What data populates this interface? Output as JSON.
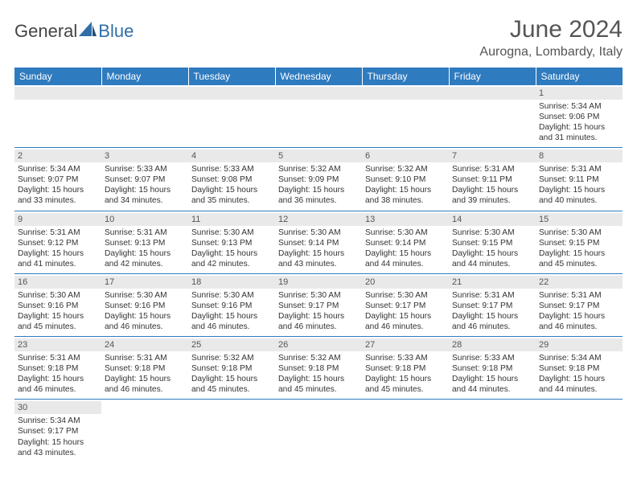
{
  "logo": {
    "part1": "General",
    "part2": "Blue"
  },
  "title": "June 2024",
  "location": "Aurogna, Lombardy, Italy",
  "colors": {
    "header_bg": "#2f7bbf",
    "header_text": "#ffffff",
    "daynum_bg": "#e9e9e9",
    "border": "#2f7bbf",
    "logo_accent": "#2f6ea8"
  },
  "day_headers": [
    "Sunday",
    "Monday",
    "Tuesday",
    "Wednesday",
    "Thursday",
    "Friday",
    "Saturday"
  ],
  "weeks": [
    [
      {
        "blank": true
      },
      {
        "blank": true
      },
      {
        "blank": true
      },
      {
        "blank": true
      },
      {
        "blank": true
      },
      {
        "blank": true
      },
      {
        "n": "1",
        "sunrise": "Sunrise: 5:34 AM",
        "sunset": "Sunset: 9:06 PM",
        "d1": "Daylight: 15 hours",
        "d2": "and 31 minutes."
      }
    ],
    [
      {
        "n": "2",
        "sunrise": "Sunrise: 5:34 AM",
        "sunset": "Sunset: 9:07 PM",
        "d1": "Daylight: 15 hours",
        "d2": "and 33 minutes."
      },
      {
        "n": "3",
        "sunrise": "Sunrise: 5:33 AM",
        "sunset": "Sunset: 9:07 PM",
        "d1": "Daylight: 15 hours",
        "d2": "and 34 minutes."
      },
      {
        "n": "4",
        "sunrise": "Sunrise: 5:33 AM",
        "sunset": "Sunset: 9:08 PM",
        "d1": "Daylight: 15 hours",
        "d2": "and 35 minutes."
      },
      {
        "n": "5",
        "sunrise": "Sunrise: 5:32 AM",
        "sunset": "Sunset: 9:09 PM",
        "d1": "Daylight: 15 hours",
        "d2": "and 36 minutes."
      },
      {
        "n": "6",
        "sunrise": "Sunrise: 5:32 AM",
        "sunset": "Sunset: 9:10 PM",
        "d1": "Daylight: 15 hours",
        "d2": "and 38 minutes."
      },
      {
        "n": "7",
        "sunrise": "Sunrise: 5:31 AM",
        "sunset": "Sunset: 9:11 PM",
        "d1": "Daylight: 15 hours",
        "d2": "and 39 minutes."
      },
      {
        "n": "8",
        "sunrise": "Sunrise: 5:31 AM",
        "sunset": "Sunset: 9:11 PM",
        "d1": "Daylight: 15 hours",
        "d2": "and 40 minutes."
      }
    ],
    [
      {
        "n": "9",
        "sunrise": "Sunrise: 5:31 AM",
        "sunset": "Sunset: 9:12 PM",
        "d1": "Daylight: 15 hours",
        "d2": "and 41 minutes."
      },
      {
        "n": "10",
        "sunrise": "Sunrise: 5:31 AM",
        "sunset": "Sunset: 9:13 PM",
        "d1": "Daylight: 15 hours",
        "d2": "and 42 minutes."
      },
      {
        "n": "11",
        "sunrise": "Sunrise: 5:30 AM",
        "sunset": "Sunset: 9:13 PM",
        "d1": "Daylight: 15 hours",
        "d2": "and 42 minutes."
      },
      {
        "n": "12",
        "sunrise": "Sunrise: 5:30 AM",
        "sunset": "Sunset: 9:14 PM",
        "d1": "Daylight: 15 hours",
        "d2": "and 43 minutes."
      },
      {
        "n": "13",
        "sunrise": "Sunrise: 5:30 AM",
        "sunset": "Sunset: 9:14 PM",
        "d1": "Daylight: 15 hours",
        "d2": "and 44 minutes."
      },
      {
        "n": "14",
        "sunrise": "Sunrise: 5:30 AM",
        "sunset": "Sunset: 9:15 PM",
        "d1": "Daylight: 15 hours",
        "d2": "and 44 minutes."
      },
      {
        "n": "15",
        "sunrise": "Sunrise: 5:30 AM",
        "sunset": "Sunset: 9:15 PM",
        "d1": "Daylight: 15 hours",
        "d2": "and 45 minutes."
      }
    ],
    [
      {
        "n": "16",
        "sunrise": "Sunrise: 5:30 AM",
        "sunset": "Sunset: 9:16 PM",
        "d1": "Daylight: 15 hours",
        "d2": "and 45 minutes."
      },
      {
        "n": "17",
        "sunrise": "Sunrise: 5:30 AM",
        "sunset": "Sunset: 9:16 PM",
        "d1": "Daylight: 15 hours",
        "d2": "and 46 minutes."
      },
      {
        "n": "18",
        "sunrise": "Sunrise: 5:30 AM",
        "sunset": "Sunset: 9:16 PM",
        "d1": "Daylight: 15 hours",
        "d2": "and 46 minutes."
      },
      {
        "n": "19",
        "sunrise": "Sunrise: 5:30 AM",
        "sunset": "Sunset: 9:17 PM",
        "d1": "Daylight: 15 hours",
        "d2": "and 46 minutes."
      },
      {
        "n": "20",
        "sunrise": "Sunrise: 5:30 AM",
        "sunset": "Sunset: 9:17 PM",
        "d1": "Daylight: 15 hours",
        "d2": "and 46 minutes."
      },
      {
        "n": "21",
        "sunrise": "Sunrise: 5:31 AM",
        "sunset": "Sunset: 9:17 PM",
        "d1": "Daylight: 15 hours",
        "d2": "and 46 minutes."
      },
      {
        "n": "22",
        "sunrise": "Sunrise: 5:31 AM",
        "sunset": "Sunset: 9:17 PM",
        "d1": "Daylight: 15 hours",
        "d2": "and 46 minutes."
      }
    ],
    [
      {
        "n": "23",
        "sunrise": "Sunrise: 5:31 AM",
        "sunset": "Sunset: 9:18 PM",
        "d1": "Daylight: 15 hours",
        "d2": "and 46 minutes."
      },
      {
        "n": "24",
        "sunrise": "Sunrise: 5:31 AM",
        "sunset": "Sunset: 9:18 PM",
        "d1": "Daylight: 15 hours",
        "d2": "and 46 minutes."
      },
      {
        "n": "25",
        "sunrise": "Sunrise: 5:32 AM",
        "sunset": "Sunset: 9:18 PM",
        "d1": "Daylight: 15 hours",
        "d2": "and 45 minutes."
      },
      {
        "n": "26",
        "sunrise": "Sunrise: 5:32 AM",
        "sunset": "Sunset: 9:18 PM",
        "d1": "Daylight: 15 hours",
        "d2": "and 45 minutes."
      },
      {
        "n": "27",
        "sunrise": "Sunrise: 5:33 AM",
        "sunset": "Sunset: 9:18 PM",
        "d1": "Daylight: 15 hours",
        "d2": "and 45 minutes."
      },
      {
        "n": "28",
        "sunrise": "Sunrise: 5:33 AM",
        "sunset": "Sunset: 9:18 PM",
        "d1": "Daylight: 15 hours",
        "d2": "and 44 minutes."
      },
      {
        "n": "29",
        "sunrise": "Sunrise: 5:34 AM",
        "sunset": "Sunset: 9:18 PM",
        "d1": "Daylight: 15 hours",
        "d2": "and 44 minutes."
      }
    ],
    [
      {
        "n": "30",
        "sunrise": "Sunrise: 5:34 AM",
        "sunset": "Sunset: 9:17 PM",
        "d1": "Daylight: 15 hours",
        "d2": "and 43 minutes."
      },
      {
        "blank": true
      },
      {
        "blank": true
      },
      {
        "blank": true
      },
      {
        "blank": true
      },
      {
        "blank": true
      },
      {
        "blank": true
      }
    ]
  ]
}
